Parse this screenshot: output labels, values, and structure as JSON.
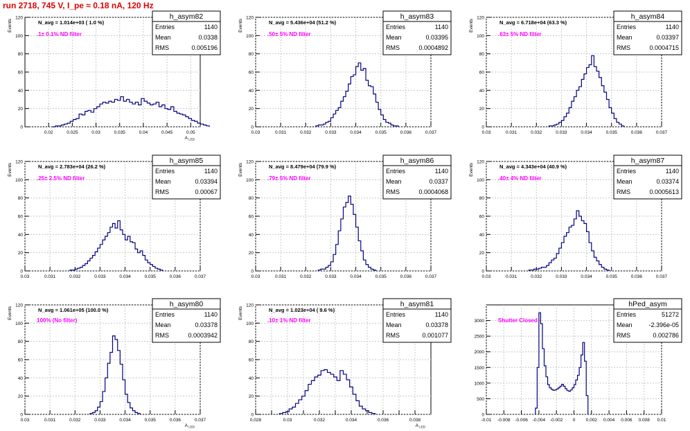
{
  "page_title": "run 2718,   745 V, I_pe ≈ 0.18 nA, 120 Hz",
  "colors": {
    "title": "#e00000",
    "annotation": "#ff00ff",
    "histogram": "#000080",
    "grid": "#c8c8c8"
  },
  "chart_data": [
    {
      "type": "histogram",
      "name": "h_asym82",
      "stats": [
        {
          "label": "Entries",
          "value": "1140"
        },
        {
          "label": "Mean",
          "value": "0.0338"
        },
        {
          "label": "RMS",
          "value": "0.005196"
        }
      ],
      "navg_text": "N_avg = 1.014e+03 ( 1.0 %)",
      "filter_text": ".1± 0.1% ND filter",
      "ylabel": "Events",
      "xlabel": "A_LED",
      "xlim": [
        0.015,
        0.052
      ],
      "ylim": [
        0,
        120
      ],
      "xticks": [
        {
          "v": 0.02,
          "label": "0.02"
        },
        {
          "v": 0.025,
          "label": "0.025"
        },
        {
          "v": 0.03,
          "label": "0.03"
        },
        {
          "v": 0.035,
          "label": "0.035"
        },
        {
          "v": 0.04,
          "label": "0.04"
        },
        {
          "v": 0.045,
          "label": "0.045"
        },
        {
          "v": 0.05,
          "label": "0.05"
        }
      ],
      "yticks": [
        0,
        20,
        40,
        60,
        80,
        100,
        120
      ],
      "bins": {
        "xmin": 0.0208,
        "width": 0.000625,
        "counts": [
          0,
          1,
          1,
          2,
          3,
          4,
          6,
          8,
          9,
          14,
          13,
          17,
          18,
          16,
          20,
          22,
          25,
          27,
          26,
          28,
          27,
          30,
          29,
          33,
          28,
          30,
          27,
          25,
          27,
          24,
          31,
          28,
          26,
          24,
          25,
          27,
          22,
          24,
          20,
          19,
          22,
          17,
          15,
          14,
          13,
          11,
          9,
          7,
          6,
          4,
          3,
          2,
          1
        ]
      }
    },
    {
      "type": "histogram",
      "name": "h_asym83",
      "stats": [
        {
          "label": "Entries",
          "value": "1140"
        },
        {
          "label": "Mean",
          "value": "0.03395"
        },
        {
          "label": "RMS",
          "value": "0.0004892"
        }
      ],
      "navg_text": "N_avg = 5.436e+04 (51.2 %)",
      "filter_text": ".50± 5% ND filter",
      "ylabel": "Events",
      "xlabel": "",
      "xlim": [
        0.03,
        0.037
      ],
      "ylim": [
        0,
        120
      ],
      "xticks": [
        {
          "v": 0.03,
          "label": "0.03"
        },
        {
          "v": 0.031,
          "label": "0.031"
        },
        {
          "v": 0.032,
          "label": "0.032"
        },
        {
          "v": 0.033,
          "label": "0.033"
        },
        {
          "v": 0.034,
          "label": "0.034"
        },
        {
          "v": 0.035,
          "label": "0.035"
        },
        {
          "v": 0.036,
          "label": "0.036"
        },
        {
          "v": 0.037,
          "label": "0.037"
        }
      ],
      "yticks": [
        0,
        20,
        40,
        60,
        80,
        100,
        120
      ],
      "bins": {
        "xmin": 0.0324,
        "width": 0.0001,
        "counts": [
          1,
          2,
          2,
          3,
          5,
          6,
          10,
          14,
          18,
          21,
          28,
          33,
          39,
          47,
          55,
          57,
          66,
          70,
          62,
          64,
          51,
          45,
          44,
          36,
          27,
          19,
          13,
          8,
          5,
          4,
          2,
          1,
          1
        ]
      }
    },
    {
      "type": "histogram",
      "name": "h_asym84",
      "stats": [
        {
          "label": "Entries",
          "value": "1140"
        },
        {
          "label": "Mean",
          "value": "0.03397"
        },
        {
          "label": "RMS",
          "value": "0.0004715"
        }
      ],
      "navg_text": "N_avg = 6.718e+04 (63.3 %)",
      "filter_text": ".63± 5% ND filter",
      "ylabel": "Events",
      "xlabel": "",
      "xlim": [
        0.03,
        0.037
      ],
      "ylim": [
        0,
        120
      ],
      "xticks": [
        {
          "v": 0.03,
          "label": "0.03"
        },
        {
          "v": 0.031,
          "label": "0.031"
        },
        {
          "v": 0.032,
          "label": "0.032"
        },
        {
          "v": 0.033,
          "label": "0.033"
        },
        {
          "v": 0.034,
          "label": "0.034"
        },
        {
          "v": 0.035,
          "label": "0.035"
        },
        {
          "v": 0.036,
          "label": "0.036"
        },
        {
          "v": 0.037,
          "label": "0.037"
        }
      ],
      "yticks": [
        0,
        20,
        40,
        60,
        80,
        100,
        120
      ],
      "bins": {
        "xmin": 0.0325,
        "width": 0.0001,
        "counts": [
          1,
          1,
          2,
          3,
          5,
          7,
          11,
          15,
          21,
          28,
          33,
          40,
          44,
          52,
          58,
          65,
          68,
          78,
          66,
          61,
          54,
          45,
          38,
          30,
          21,
          15,
          9,
          5,
          3,
          1
        ]
      }
    },
    {
      "type": "histogram",
      "name": "h_asym85",
      "stats": [
        {
          "label": "Entries",
          "value": "1140"
        },
        {
          "label": "Mean",
          "value": "0.03394"
        },
        {
          "label": "RMS",
          "value": "0.00067"
        }
      ],
      "navg_text": "N_avg = 2.783e+04 (26.2 %)",
      "filter_text": ".25± 2.5% ND filter",
      "ylabel": "Events",
      "xlabel": "",
      "xlim": [
        0.03,
        0.037
      ],
      "ylim": [
        0,
        120
      ],
      "xticks": [
        {
          "v": 0.03,
          "label": "0.03"
        },
        {
          "v": 0.031,
          "label": "0.031"
        },
        {
          "v": 0.032,
          "label": "0.032"
        },
        {
          "v": 0.033,
          "label": "0.033"
        },
        {
          "v": 0.034,
          "label": "0.034"
        },
        {
          "v": 0.035,
          "label": "0.035"
        },
        {
          "v": 0.036,
          "label": "0.036"
        },
        {
          "v": 0.037,
          "label": "0.037"
        }
      ],
      "yticks": [
        0,
        20,
        40,
        60,
        80,
        100,
        120
      ],
      "bins": {
        "xmin": 0.0318,
        "width": 0.0001,
        "counts": [
          1,
          1,
          2,
          3,
          4,
          6,
          8,
          11,
          14,
          17,
          21,
          25,
          29,
          34,
          38,
          42,
          48,
          52,
          47,
          55,
          45,
          40,
          34,
          38,
          32,
          31,
          24,
          20,
          22,
          17,
          12,
          9,
          7,
          5,
          3,
          2,
          1
        ]
      }
    },
    {
      "type": "histogram",
      "name": "h_asym86",
      "stats": [
        {
          "label": "Entries",
          "value": "1140"
        },
        {
          "label": "Mean",
          "value": "0.0337"
        },
        {
          "label": "RMS",
          "value": "0.0004068"
        }
      ],
      "navg_text": "N_avg = 8.479e+04 (79.9 %)",
      "filter_text": ".79± 5% ND filter",
      "ylabel": "Events",
      "xlabel": "",
      "xlim": [
        0.03,
        0.037
      ],
      "ylim": [
        0,
        120
      ],
      "xticks": [
        {
          "v": 0.03,
          "label": "0.03"
        },
        {
          "v": 0.031,
          "label": "0.031"
        },
        {
          "v": 0.032,
          "label": "0.032"
        },
        {
          "v": 0.033,
          "label": "0.033"
        },
        {
          "v": 0.034,
          "label": "0.034"
        },
        {
          "v": 0.035,
          "label": "0.035"
        },
        {
          "v": 0.036,
          "label": "0.036"
        },
        {
          "v": 0.037,
          "label": "0.037"
        }
      ],
      "yticks": [
        0,
        20,
        40,
        60,
        80,
        100,
        120
      ],
      "bins": {
        "xmin": 0.0325,
        "width": 0.0001,
        "counts": [
          1,
          2,
          2,
          4,
          6,
          10,
          18,
          29,
          44,
          57,
          70,
          75,
          82,
          73,
          62,
          48,
          33,
          22,
          12,
          7,
          4,
          2,
          1
        ]
      }
    },
    {
      "type": "histogram",
      "name": "h_asym87",
      "stats": [
        {
          "label": "Entries",
          "value": "1140"
        },
        {
          "label": "Mean",
          "value": "0.03374"
        },
        {
          "label": "RMS",
          "value": "0.0005613"
        }
      ],
      "navg_text": "N_avg = 4.343e+04 (40.9 %)",
      "filter_text": ".40± 4% ND filter",
      "ylabel": "Events",
      "xlabel": "",
      "xlim": [
        0.03,
        0.037
      ],
      "ylim": [
        0,
        120
      ],
      "xticks": [
        {
          "v": 0.03,
          "label": "0.03"
        },
        {
          "v": 0.031,
          "label": "0.031"
        },
        {
          "v": 0.032,
          "label": "0.032"
        },
        {
          "v": 0.033,
          "label": "0.033"
        },
        {
          "v": 0.034,
          "label": "0.034"
        },
        {
          "v": 0.035,
          "label": "0.035"
        },
        {
          "v": 0.036,
          "label": "0.036"
        },
        {
          "v": 0.037,
          "label": "0.037"
        }
      ],
      "yticks": [
        0,
        20,
        40,
        60,
        80,
        100,
        120
      ],
      "bins": {
        "xmin": 0.0317,
        "width": 0.0001,
        "counts": [
          1,
          1,
          2,
          2,
          3,
          4,
          4,
          6,
          9,
          12,
          14,
          19,
          25,
          31,
          38,
          42,
          48,
          50,
          57,
          66,
          60,
          55,
          52,
          43,
          31,
          22,
          15,
          11,
          7,
          4,
          2,
          1
        ]
      }
    },
    {
      "type": "histogram",
      "name": "h_asym80",
      "stats": [
        {
          "label": "Entries",
          "value": "1140"
        },
        {
          "label": "Mean",
          "value": "0.03378"
        },
        {
          "label": "RMS",
          "value": "0.0003942"
        }
      ],
      "navg_text": "N_avg = 1.061e+05 (100.0 %)",
      "filter_text": "100% (No filter)",
      "ylabel": "Events",
      "xlabel": "A_LED",
      "xlim": [
        0.03,
        0.037
      ],
      "ylim": [
        0,
        120
      ],
      "xticks": [
        {
          "v": 0.03,
          "label": "0.03"
        },
        {
          "v": 0.031,
          "label": "0.031"
        },
        {
          "v": 0.032,
          "label": "0.032"
        },
        {
          "v": 0.033,
          "label": "0.033"
        },
        {
          "v": 0.034,
          "label": "0.034"
        },
        {
          "v": 0.035,
          "label": "0.035"
        },
        {
          "v": 0.036,
          "label": "0.036"
        },
        {
          "v": 0.037,
          "label": "0.037"
        }
      ],
      "yticks": [
        0,
        20,
        40,
        60,
        80,
        100,
        120
      ],
      "bins": {
        "xmin": 0.0326,
        "width": 0.0001,
        "counts": [
          1,
          2,
          4,
          8,
          14,
          25,
          40,
          56,
          68,
          86,
          82,
          70,
          55,
          38,
          22,
          13,
          7,
          4,
          2,
          1
        ]
      }
    },
    {
      "type": "histogram",
      "name": "h_asym81",
      "stats": [
        {
          "label": "Entries",
          "value": "1140"
        },
        {
          "label": "Mean",
          "value": "0.03378"
        },
        {
          "label": "RMS",
          "value": "0.001077"
        }
      ],
      "navg_text": "N_avg = 1.023e+04 ( 9.6 %)",
      "filter_text": ".10± 1% ND filter",
      "ylabel": "Events",
      "xlabel": "A_LED",
      "xlim": [
        0.028,
        0.039
      ],
      "ylim": [
        0,
        120
      ],
      "xticks": [
        {
          "v": 0.028,
          "label": "0.028"
        },
        {
          "v": 0.029,
          "label": ""
        },
        {
          "v": 0.03,
          "label": "0.03"
        },
        {
          "v": 0.031,
          "label": ""
        },
        {
          "v": 0.032,
          "label": "0.032"
        },
        {
          "v": 0.033,
          "label": ""
        },
        {
          "v": 0.034,
          "label": "0.034"
        },
        {
          "v": 0.035,
          "label": ""
        },
        {
          "v": 0.036,
          "label": "0.036"
        },
        {
          "v": 0.037,
          "label": ""
        },
        {
          "v": 0.038,
          "label": "0.038"
        }
      ],
      "yticks": [
        0,
        20,
        40,
        60,
        80,
        100,
        120
      ],
      "bins": {
        "xmin": 0.0295,
        "width": 0.0002,
        "counts": [
          1,
          2,
          3,
          6,
          8,
          12,
          16,
          20,
          26,
          33,
          37,
          41,
          43,
          48,
          49,
          46,
          44,
          41,
          37,
          48,
          44,
          38,
          30,
          22,
          15,
          9,
          6,
          4,
          2,
          1
        ]
      }
    },
    {
      "type": "histogram",
      "name": "hPed_asym",
      "stats": [
        {
          "label": "Entries",
          "value": "51272"
        },
        {
          "label": "Mean",
          "value": "-2.396e-05"
        },
        {
          "label": "RMS",
          "value": "0.002786"
        }
      ],
      "navg_text": "",
      "filter_text": "Shutter Closed",
      "ylabel": "",
      "xlabel": "",
      "xlim": [
        -0.01,
        0.01
      ],
      "ylim": [
        0,
        3500
      ],
      "xticks": [
        {
          "v": -0.01,
          "label": "-0.01"
        },
        {
          "v": -0.008,
          "label": "-0.008"
        },
        {
          "v": -0.006,
          "label": "-0.006"
        },
        {
          "v": -0.004,
          "label": "-0.004"
        },
        {
          "v": -0.002,
          "label": "-0.002"
        },
        {
          "v": 0,
          "label": "0"
        },
        {
          "v": 0.002,
          "label": "0.002"
        },
        {
          "v": 0.004,
          "label": "0.004"
        },
        {
          "v": 0.006,
          "label": "0.006"
        },
        {
          "v": 0.008,
          "label": "0.008"
        },
        {
          "v": 0.01,
          "label": "0.01"
        }
      ],
      "yticks": [
        0,
        500,
        1000,
        1500,
        2000,
        2500,
        3000
      ],
      "bins": {
        "xmin": -0.0044,
        "width": 0.0002,
        "counts": [
          200,
          1500,
          3250,
          2900,
          2100,
          1550,
          1200,
          950,
          850,
          800,
          770,
          780,
          810,
          850,
          900,
          960,
          900,
          820,
          760,
          740,
          780,
          850,
          950,
          1100,
          1250,
          1500,
          1900,
          2300,
          1700,
          600
        ]
      }
    }
  ]
}
